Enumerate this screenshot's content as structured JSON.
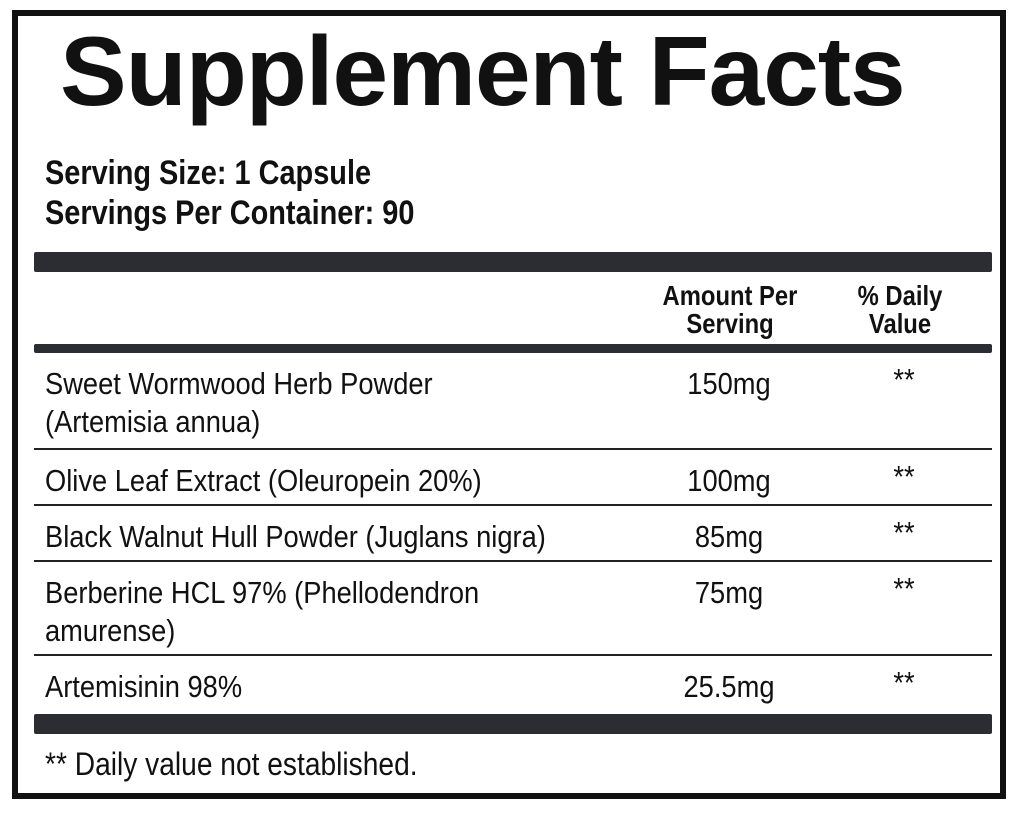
{
  "title": "Supplement Facts",
  "serving_size": "Serving Size: 1 Capsule",
  "servings_per_container": "Servings Per Container: 90",
  "headers": {
    "amount_line1": "Amount Per",
    "amount_line2": "Serving",
    "dv_line1": "% Daily",
    "dv_line2": "Value"
  },
  "rows": [
    {
      "name_line1": "Sweet Wormwood Herb Powder",
      "name_line2": "(Artemisia annua)",
      "amount": "150mg",
      "dv": "**"
    },
    {
      "name_line1": "Olive Leaf Extract (Oleuropein 20%)",
      "name_line2": "",
      "amount": "100mg",
      "dv": "**"
    },
    {
      "name_line1": "Black Walnut Hull Powder (Juglans nigra)",
      "name_line2": "",
      "amount": "85mg",
      "dv": "**"
    },
    {
      "name_line1": "Berberine HCL 97% (Phellodendron",
      "name_line2": "amurense)",
      "amount": "75mg",
      "dv": "**"
    },
    {
      "name_line1": "Artemisinin 98%",
      "name_line2": "",
      "amount": "25.5mg",
      "dv": "**"
    }
  ],
  "footnote": "** Daily value not established."
}
